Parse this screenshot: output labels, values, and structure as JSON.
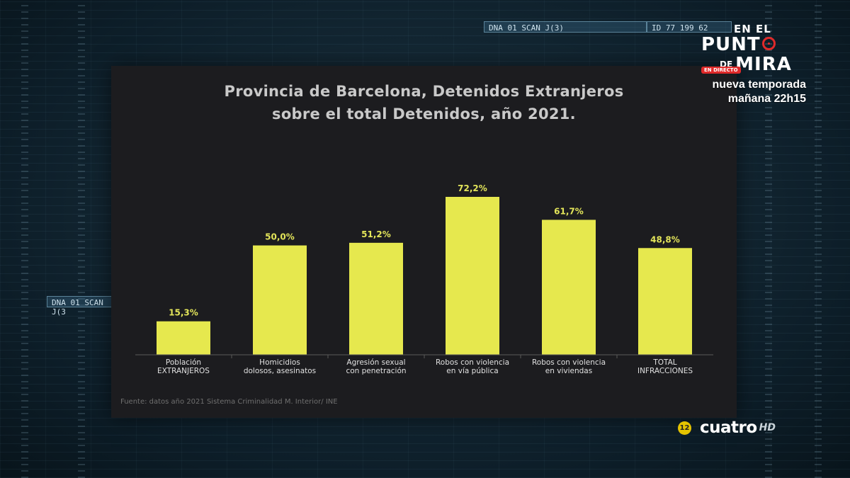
{
  "chart_data": {
    "type": "bar",
    "title_lines": [
      "Provincia de Barcelona, Detenidos Extranjeros",
      "sobre el total Detenidos, año 2021."
    ],
    "categories": [
      [
        "Población",
        "EXTRANJEROS"
      ],
      [
        "Homicidios",
        "dolosos, asesinatos"
      ],
      [
        "Agresión sexual",
        "con penetración"
      ],
      [
        "Robos con violencia",
        "en vía pública"
      ],
      [
        "Robos con violencia",
        "en viviendas"
      ],
      [
        "TOTAL",
        "INFRACCIONES"
      ]
    ],
    "values": [
      15.3,
      50.0,
      51.2,
      72.2,
      61.7,
      48.8
    ],
    "value_labels": [
      "15,3%",
      "50,0%",
      "51,2%",
      "72,2%",
      "61,7%",
      "48,8%"
    ],
    "ylim": [
      0,
      100
    ],
    "grid": false,
    "bar_color": "#e6e84e",
    "source": "Fuente: datos año 2021 Sistema Criminalidad M. Interior/ INE"
  },
  "overlay": {
    "logo_line1": "EN EL",
    "logo_line2": "PUNT",
    "logo_de": "DE",
    "logo_mira": "MIRA",
    "live_badge": "EN DIRECTO",
    "promo_line1": "nueva temporada",
    "promo_line2": "mañana 22h15",
    "channel_age": "12",
    "channel_name": "cuatro",
    "channel_hd": "HD",
    "accent_color": "#e02a2a"
  },
  "background": {
    "scan_box_top": "DNA 01 SCAN J(3)",
    "scan_id": "ID 77 199 62",
    "scan_box_left": "DNA 01 SCAN J(3"
  }
}
